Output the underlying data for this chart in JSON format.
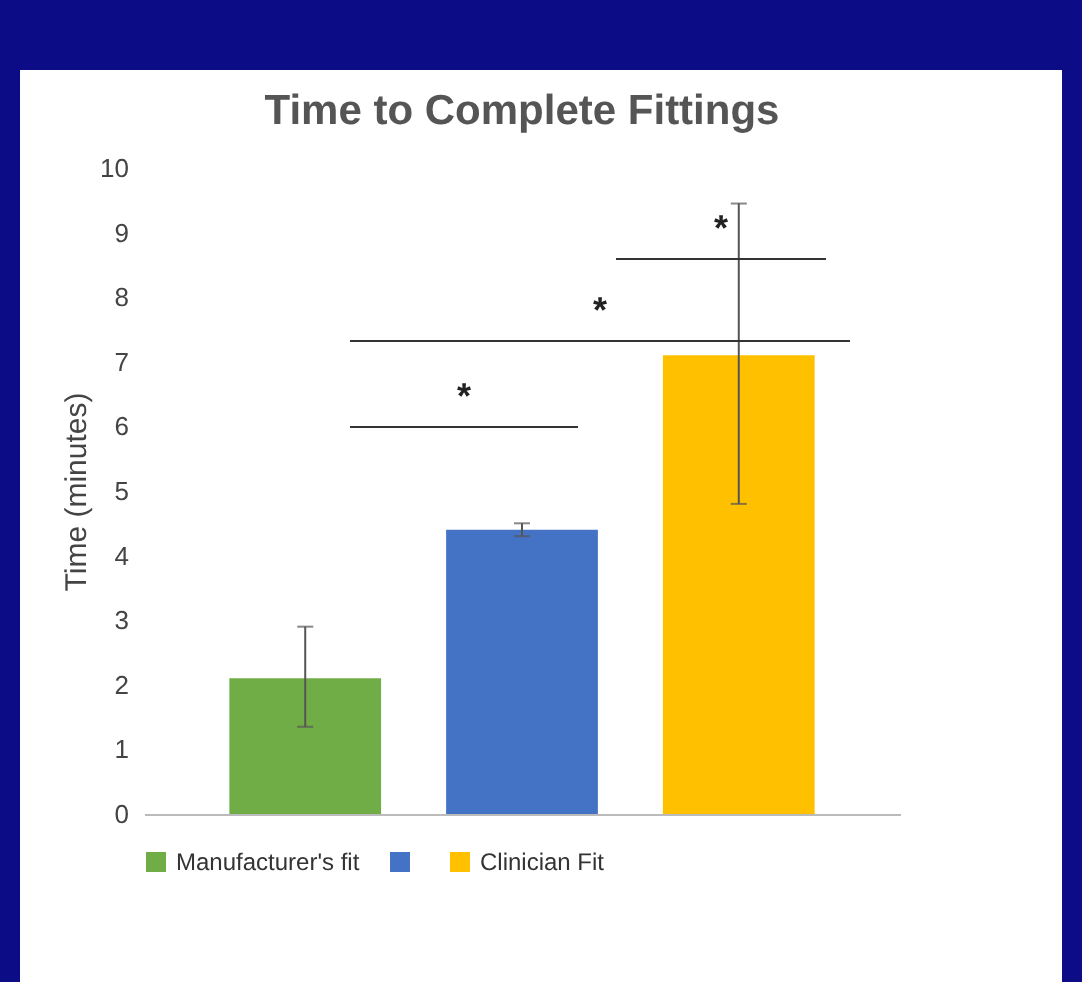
{
  "chart_data": {
    "type": "bar",
    "title": "Time to Complete Fittings",
    "ylabel": "Time (minutes)",
    "categories": [
      null
    ],
    "series": [
      {
        "name": "Manufacturer's fit",
        "color": "#70ad47",
        "values": [
          2.1
        ],
        "errors": [
          [
            1.35,
            2.9
          ]
        ]
      },
      {
        "color": "#4472c4",
        "values": [
          4.4
        ],
        "errors": [
          [
            4.3,
            4.5
          ]
        ]
      },
      {
        "name": "Clinician Fit",
        "color": "#ffc000",
        "values": [
          7.1
        ],
        "errors": [
          [
            4.8,
            9.45
          ]
        ]
      }
    ],
    "ylim": [
      0,
      10
    ],
    "yticks": [
      0,
      1,
      2,
      3,
      4,
      5,
      6,
      7,
      8,
      9,
      10
    ],
    "grid": false,
    "legend": "bottom",
    "tick_labels": "y",
    "annotations": [
      "*",
      "*",
      "*"
    ]
  }
}
